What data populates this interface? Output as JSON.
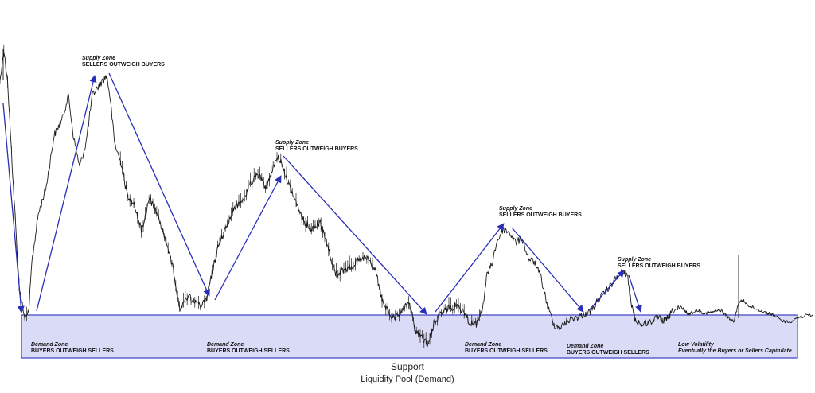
{
  "chart_data": {
    "type": "line",
    "title": "",
    "xlabel": "",
    "ylabel": "",
    "grid": false,
    "legend": "none",
    "support_label": "Support",
    "liquidity_label": "Liquidity Pool (Demand)",
    "colors": {
      "price": "#1a1a1a",
      "arrow": "#2a2fb8",
      "pool_fill": "#d9dbf7",
      "pool_border": "#3a3fc4"
    },
    "annotations": [
      {
        "id": "supply-1",
        "title": "Supply Zone",
        "text": "SELLERS OUTWEIGH BUYERS"
      },
      {
        "id": "supply-2",
        "title": "Supply Zone",
        "text": "SELLERS OUTWEIGH BUYERS"
      },
      {
        "id": "supply-3",
        "title": "Supply Zone",
        "text": "SELLERS OUTWEIGH BUYERS"
      },
      {
        "id": "supply-4",
        "title": "Supply Zone",
        "text": "SELLERS OUTWEIGH BUYERS"
      },
      {
        "id": "demand-1",
        "title": "Demand Zone",
        "text": "BUYERS OUTWEIGH SELLERS"
      },
      {
        "id": "demand-2",
        "title": "Demand Zone",
        "text": "BUYERS OUTWEIGH SELLERS"
      },
      {
        "id": "demand-3",
        "title": "Demand Zone",
        "text": "BUYERS OUTWEIGH SELLERS"
      },
      {
        "id": "demand-4",
        "title": "Demand Zone",
        "text": "BUYERS OUTWEIGH SELLERS"
      },
      {
        "id": "low-vol",
        "title": "Low Volatility",
        "text": "Eventually the Buyers or Sellers Capitulate"
      }
    ]
  }
}
